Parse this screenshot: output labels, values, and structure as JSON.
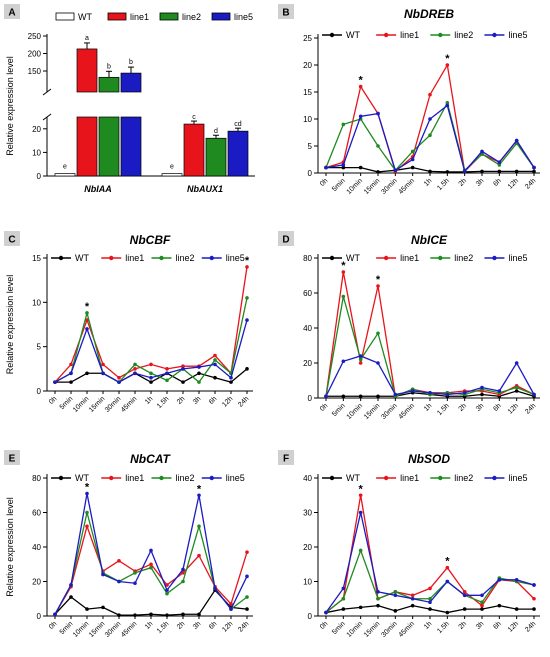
{
  "colors": {
    "WT": "#000000",
    "line1": "#e8141c",
    "line2": "#1f8a1f",
    "line5": "#1b1bc4"
  },
  "chart_data": [
    {
      "id": "A",
      "type": "bar",
      "panel_label": "A",
      "title": "",
      "ylabel": "Relative expression level",
      "categories": [
        "NbIAA",
        "NbAUX1"
      ],
      "y_axis": {
        "broken": true,
        "lower_range": [
          0,
          25
        ],
        "lower_ticks": [
          0,
          10,
          20
        ],
        "upper_range": [
          90,
          250
        ],
        "upper_ticks": [
          150,
          200,
          250
        ]
      },
      "series": [
        {
          "name": "WT",
          "values": [
            1,
            1
          ],
          "letters": [
            "e",
            "e"
          ]
        },
        {
          "name": "line1",
          "values": [
            213,
            22
          ],
          "letters": [
            "a",
            "c"
          ]
        },
        {
          "name": "line2",
          "values": [
            132,
            16
          ],
          "letters": [
            "b",
            "d"
          ]
        },
        {
          "name": "line5",
          "values": [
            144,
            19
          ],
          "letters": [
            "b",
            "cd"
          ]
        }
      ],
      "legend": "top"
    },
    {
      "id": "B",
      "type": "line",
      "panel_label": "B",
      "title": "NbDREB",
      "ylabel": "",
      "ylim": [
        0,
        25
      ],
      "yticks": [
        0,
        5,
        10,
        15,
        20,
        25
      ],
      "x": [
        "0h",
        "5min",
        "10min",
        "15min",
        "30min",
        "45min",
        "1h",
        "1.5h",
        "2h",
        "3h",
        "6h",
        "12h",
        "24h"
      ],
      "series": [
        {
          "name": "WT",
          "values": [
            1,
            1,
            1,
            0.2,
            0.5,
            1,
            0.3,
            0.2,
            0.2,
            0.3,
            0.3,
            0.3,
            0.3
          ]
        },
        {
          "name": "line1",
          "values": [
            1,
            2,
            16,
            11,
            0.3,
            3,
            14.5,
            20,
            0.3,
            3.5,
            2,
            6,
            1
          ]
        },
        {
          "name": "line2",
          "values": [
            1,
            9,
            10,
            5,
            0.5,
            4,
            7,
            13,
            0.5,
            3.5,
            1.5,
            5.5,
            1
          ]
        },
        {
          "name": "line5",
          "values": [
            1,
            1.5,
            10.5,
            11,
            0.5,
            2.5,
            10,
            12.5,
            0.3,
            4,
            2,
            6,
            1
          ]
        }
      ],
      "stars": [
        2,
        7
      ],
      "legend": "top"
    },
    {
      "id": "C",
      "type": "line",
      "panel_label": "C",
      "title": "NbCBF",
      "ylabel": "Relative expression level",
      "ylim": [
        0,
        15
      ],
      "yticks": [
        0,
        5,
        10,
        15
      ],
      "x": [
        "0h",
        "5min",
        "10min",
        "15min",
        "30min",
        "45min",
        "1h",
        "1.5h",
        "2h",
        "3h",
        "6h",
        "12h",
        "24h"
      ],
      "series": [
        {
          "name": "WT",
          "values": [
            1,
            1,
            2,
            2,
            1,
            2,
            1,
            2,
            1,
            2,
            1.5,
            1,
            2.5
          ]
        },
        {
          "name": "line1",
          "values": [
            1,
            3,
            8,
            3,
            1.5,
            2.5,
            3,
            2.5,
            2.8,
            2.8,
            4,
            2,
            14
          ]
        },
        {
          "name": "line2",
          "values": [
            1,
            2,
            8.8,
            2,
            1,
            3,
            2,
            1.2,
            2.5,
            1,
            3.5,
            2,
            10.5
          ]
        },
        {
          "name": "line5",
          "values": [
            1,
            2,
            7,
            2,
            1,
            2,
            1.5,
            2,
            2.5,
            2.7,
            3,
            1.5,
            8
          ]
        }
      ],
      "stars": [
        2,
        12
      ],
      "legend": "top"
    },
    {
      "id": "D",
      "type": "line",
      "panel_label": "D",
      "title": "NbICE",
      "ylabel": "",
      "ylim": [
        0,
        80
      ],
      "yticks": [
        0,
        20,
        40,
        60,
        80
      ],
      "x": [
        "0h",
        "5min",
        "10min",
        "15min",
        "30min",
        "45min",
        "1h",
        "1.5h",
        "2h",
        "3h",
        "6h",
        "12h",
        "24h"
      ],
      "series": [
        {
          "name": "WT",
          "values": [
            1,
            1,
            1,
            1,
            1,
            3,
            2,
            1,
            1,
            2,
            1,
            4,
            1
          ]
        },
        {
          "name": "line1",
          "values": [
            1,
            72,
            20,
            64,
            1,
            5,
            3,
            3,
            4,
            4,
            2,
            7,
            2
          ]
        },
        {
          "name": "line2",
          "values": [
            1,
            58,
            22,
            37,
            1,
            5,
            2,
            3,
            2,
            5,
            3,
            6,
            2
          ]
        },
        {
          "name": "line5",
          "values": [
            1,
            21,
            24,
            20,
            2,
            4,
            3,
            2,
            3,
            6,
            4,
            20,
            2
          ]
        }
      ],
      "stars": [
        1,
        3
      ],
      "legend": "top"
    },
    {
      "id": "E",
      "type": "line",
      "panel_label": "E",
      "title": "NbCAT",
      "ylabel": "Relative expression level",
      "ylim": [
        0,
        80
      ],
      "yticks": [
        0,
        20,
        40,
        60,
        80
      ],
      "x": [
        "0h",
        "5min",
        "10min",
        "15min",
        "30min",
        "45min",
        "1h",
        "1.5h",
        "2h",
        "3h",
        "6h",
        "12h",
        "24h"
      ],
      "series": [
        {
          "name": "WT",
          "values": [
            1,
            11,
            4,
            5,
            0.5,
            0.5,
            1,
            0.5,
            1,
            1,
            15,
            5,
            4
          ]
        },
        {
          "name": "line1",
          "values": [
            1,
            17,
            52,
            26,
            32,
            26,
            30,
            18,
            25,
            35,
            17,
            7,
            37
          ]
        },
        {
          "name": "line2",
          "values": [
            1,
            18,
            60,
            25,
            20,
            25,
            28,
            13,
            20,
            52,
            16,
            4,
            11
          ]
        },
        {
          "name": "line5",
          "values": [
            1,
            18,
            71,
            24,
            20,
            19,
            38,
            15,
            27,
            70,
            16,
            4,
            23
          ]
        }
      ],
      "stars": [
        2,
        9
      ],
      "legend": "top"
    },
    {
      "id": "F",
      "type": "line",
      "panel_label": "F",
      "title": "NbSOD",
      "ylabel": "",
      "ylim": [
        0,
        40
      ],
      "yticks": [
        0,
        10,
        20,
        30,
        40
      ],
      "x": [
        "0h",
        "5min",
        "10min",
        "15min",
        "30min",
        "45min",
        "1h",
        "1.5h",
        "2h",
        "3h",
        "6h",
        "12h",
        "24h"
      ],
      "series": [
        {
          "name": "WT",
          "values": [
            1,
            2,
            2.5,
            3,
            1.5,
            3,
            2,
            1,
            2,
            2,
            3,
            2,
            2
          ]
        },
        {
          "name": "line1",
          "values": [
            1,
            5,
            35,
            5,
            7,
            6,
            8,
            14,
            7,
            3,
            10.5,
            10,
            5
          ]
        },
        {
          "name": "line2",
          "values": [
            1,
            5,
            19,
            5,
            7,
            5,
            5,
            10,
            6,
            4,
            11,
            10,
            9
          ]
        },
        {
          "name": "line5",
          "values": [
            1,
            8,
            30,
            7,
            6,
            5,
            4,
            10,
            6,
            6,
            10.5,
            10.5,
            9
          ]
        }
      ],
      "stars": [
        2,
        7
      ],
      "legend": "top"
    }
  ]
}
